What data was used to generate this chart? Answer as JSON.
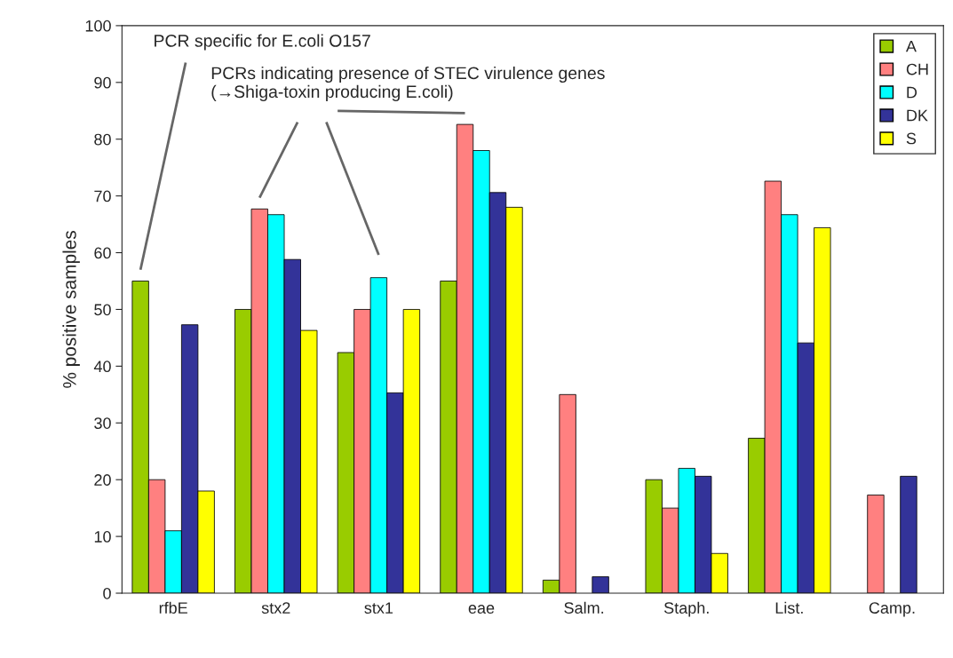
{
  "chart_data": {
    "type": "bar",
    "ylabel": "% positive samples",
    "categories": [
      "rfbE",
      "stx2",
      "stx1",
      "eae",
      "Salm.",
      "Staph.",
      "List.",
      "Camp."
    ],
    "series": [
      {
        "name": "A",
        "color": "#99cc00",
        "values": [
          55,
          50,
          42.4,
          55,
          2.3,
          20,
          27.3,
          null
        ]
      },
      {
        "name": "CH",
        "color": "#ff8080",
        "values": [
          20,
          67.7,
          50,
          82.6,
          35,
          15,
          72.6,
          17.3
        ]
      },
      {
        "name": "D",
        "color": "#00ffff",
        "values": [
          11,
          66.7,
          55.6,
          78,
          null,
          22,
          66.7,
          null
        ]
      },
      {
        "name": "DK",
        "color": "#333399",
        "values": [
          47.3,
          58.8,
          35.3,
          70.6,
          2.9,
          20.6,
          44.1,
          20.6
        ]
      },
      {
        "name": "S",
        "color": "#ffff00",
        "values": [
          18,
          46.3,
          50,
          68,
          null,
          7,
          64.4,
          null
        ]
      }
    ],
    "ylim": [
      0,
      100
    ],
    "yticks": [
      0,
      10,
      20,
      30,
      40,
      50,
      60,
      70,
      80,
      90,
      100
    ],
    "grid": false,
    "legend": "top right",
    "annotations": [
      "PCR specific for E.coli O157",
      "PCRs indicating presence of STEC virulence genes\n(→Shiga-toxin producing E.coli)"
    ]
  }
}
